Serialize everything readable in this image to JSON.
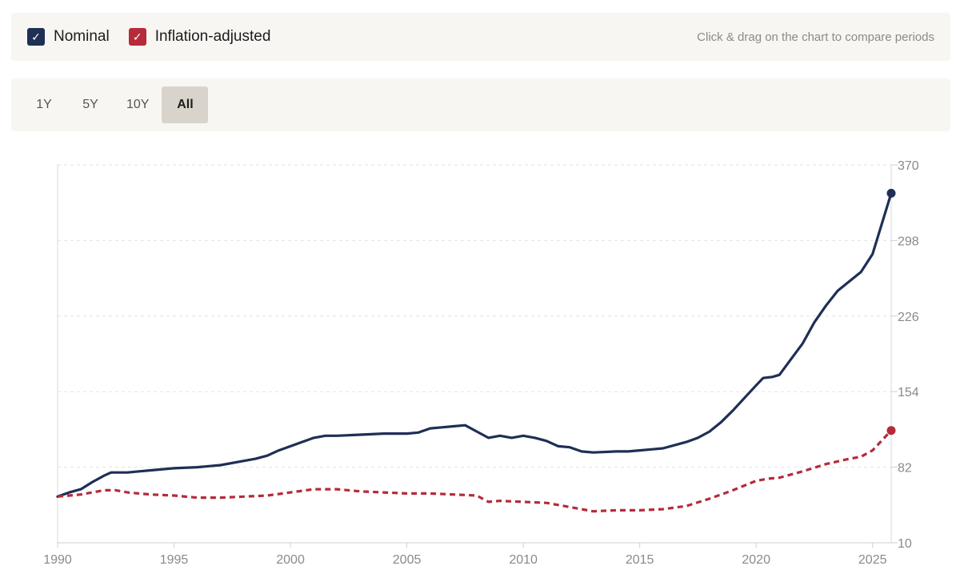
{
  "legend": {
    "items": [
      {
        "label": "Nominal",
        "checked": true,
        "color": "#1f2f55",
        "style": "solid"
      },
      {
        "label": "Inflation-adjusted",
        "checked": true,
        "color": "#b52b3a",
        "style": "dashed"
      }
    ],
    "checkmark": "✓",
    "hint": "Click & drag on the chart to compare periods"
  },
  "range": {
    "buttons": [
      {
        "label": "1Y",
        "active": false
      },
      {
        "label": "5Y",
        "active": false
      },
      {
        "label": "10Y",
        "active": false
      },
      {
        "label": "All",
        "active": true
      }
    ]
  },
  "chart_data": {
    "type": "line",
    "title": "",
    "xlabel": "",
    "ylabel": "",
    "xlim": [
      1990,
      2025.8
    ],
    "ylim": [
      10,
      370
    ],
    "x_ticks": [
      "1990",
      "1995",
      "2000",
      "2005",
      "2010",
      "2015",
      "2020",
      "2025"
    ],
    "y_ticks": [
      "10",
      "82",
      "154",
      "226",
      "298",
      "370"
    ],
    "y_axis_position": "right",
    "grid": "horizontal-dashed",
    "series": [
      {
        "name": "Nominal",
        "color": "#1f2f55",
        "style": "solid",
        "end_marker": true,
        "x": [
          1990,
          1990.5,
          1991,
          1991.5,
          1992,
          1992.3,
          1993,
          1993.5,
          1994,
          1995,
          1996,
          1997,
          1998,
          1998.5,
          1999,
          1999.5,
          2000,
          2000.5,
          2001,
          2001.5,
          2002,
          2003,
          2004,
          2005,
          2005.5,
          2006,
          2006.5,
          2007,
          2007.5,
          2008,
          2008.5,
          2009,
          2009.5,
          2010,
          2010.5,
          2011,
          2011.5,
          2012,
          2012.5,
          2013,
          2014,
          2014.5,
          2015,
          2015.5,
          2016,
          2016.5,
          2017,
          2017.5,
          2018,
          2018.5,
          2019,
          2019.5,
          2020,
          2020.3,
          2020.7,
          2021,
          2021.5,
          2022,
          2022.5,
          2023,
          2023.5,
          2024,
          2024.5,
          2025,
          2025.8
        ],
        "y": [
          54,
          58,
          61,
          68,
          74,
          77,
          77,
          78,
          79,
          81,
          82,
          84,
          88,
          90,
          93,
          98,
          102,
          106,
          110,
          112,
          112,
          113,
          114,
          114,
          115,
          119,
          120,
          121,
          122,
          116,
          110,
          112,
          110,
          112,
          110,
          107,
          102,
          101,
          97,
          96,
          97,
          97,
          98,
          99,
          100,
          103,
          106,
          110,
          116,
          125,
          136,
          148,
          160,
          167,
          168,
          170,
          185,
          200,
          220,
          236,
          250,
          259,
          268,
          285,
          343
        ]
      },
      {
        "name": "Inflation-adjusted",
        "color": "#b52b3a",
        "style": "dashed",
        "end_marker": true,
        "x": [
          1990,
          1991,
          1992,
          1992.5,
          1993,
          1994,
          1995,
          1996,
          1997,
          1998,
          1999,
          2000,
          2001,
          2002,
          2003,
          2004,
          2005,
          2006,
          2007,
          2008,
          2008.5,
          2009,
          2010,
          2011,
          2012,
          2013,
          2014,
          2015,
          2016,
          2017,
          2018,
          2019,
          2020,
          2020.5,
          2021,
          2022,
          2023,
          2024,
          2024.5,
          2025,
          2025.8
        ],
        "y": [
          54,
          56,
          60,
          60,
          58,
          56,
          55,
          53,
          53,
          54,
          55,
          58,
          61,
          61,
          59,
          58,
          57,
          57,
          56,
          55,
          49,
          50,
          49,
          48,
          44,
          40,
          41,
          41,
          42,
          45,
          52,
          60,
          69,
          71,
          72,
          78,
          85,
          90,
          92,
          98,
          117
        ]
      }
    ]
  }
}
